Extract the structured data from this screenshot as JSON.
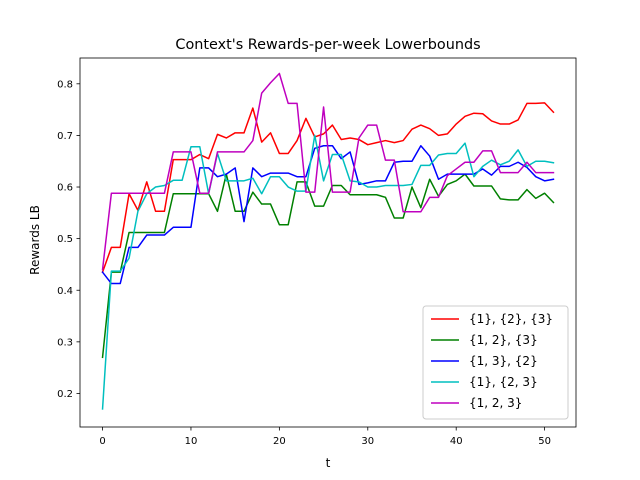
{
  "chart_data": {
    "type": "line",
    "title": "Context's Rewards-per-week Lowerbounds",
    "xlabel": "t",
    "ylabel": "Rewards LB",
    "xlim": [
      -2.55,
      53.55
    ],
    "ylim": [
      0.135,
      0.85
    ],
    "xticks": [
      0,
      10,
      20,
      30,
      40,
      50
    ],
    "yticks": [
      0.2,
      0.3,
      0.4,
      0.5,
      0.6,
      0.7,
      0.8
    ],
    "grid": false,
    "legend_position": "lower right",
    "x": [
      0,
      1,
      2,
      3,
      4,
      5,
      6,
      7,
      8,
      9,
      10,
      11,
      12,
      13,
      14,
      15,
      16,
      17,
      18,
      19,
      20,
      21,
      22,
      23,
      24,
      25,
      26,
      27,
      28,
      29,
      30,
      31,
      32,
      33,
      34,
      35,
      36,
      37,
      38,
      39,
      40,
      41,
      42,
      43,
      44,
      45,
      46,
      47,
      48,
      49,
      50,
      51
    ],
    "series": [
      {
        "name": "{1}, {2}, {3}",
        "color": "#ff0000",
        "values": [
          0.435,
          0.483,
          0.483,
          0.587,
          0.555,
          0.61,
          0.553,
          0.553,
          0.653,
          0.653,
          0.653,
          0.663,
          0.655,
          0.702,
          0.695,
          0.705,
          0.705,
          0.753,
          0.687,
          0.705,
          0.665,
          0.665,
          0.69,
          0.733,
          0.697,
          0.703,
          0.72,
          0.692,
          0.695,
          0.692,
          0.682,
          0.686,
          0.69,
          0.686,
          0.69,
          0.712,
          0.72,
          0.713,
          0.7,
          0.703,
          0.722,
          0.737,
          0.743,
          0.742,
          0.728,
          0.722,
          0.722,
          0.73,
          0.762,
          0.762,
          0.763,
          0.745
        ]
      },
      {
        "name": "{1, 2}, {3}",
        "color": "#008000",
        "values": [
          0.27,
          0.435,
          0.435,
          0.512,
          0.512,
          0.512,
          0.512,
          0.512,
          0.587,
          0.587,
          0.587,
          0.587,
          0.587,
          0.553,
          0.625,
          0.553,
          0.553,
          0.59,
          0.567,
          0.567,
          0.527,
          0.527,
          0.61,
          0.61,
          0.563,
          0.563,
          0.603,
          0.603,
          0.585,
          0.585,
          0.585,
          0.585,
          0.58,
          0.54,
          0.54,
          0.6,
          0.56,
          0.615,
          0.582,
          0.605,
          0.612,
          0.625,
          0.602,
          0.602,
          0.602,
          0.577,
          0.575,
          0.575,
          0.595,
          0.578,
          0.588,
          0.57
        ]
      },
      {
        "name": "{1, 3}, {2}",
        "color": "#0000ff",
        "values": [
          0.435,
          0.413,
          0.413,
          0.483,
          0.483,
          0.507,
          0.507,
          0.507,
          0.522,
          0.522,
          0.522,
          0.637,
          0.637,
          0.62,
          0.625,
          0.637,
          0.533,
          0.637,
          0.62,
          0.627,
          0.627,
          0.627,
          0.62,
          0.62,
          0.675,
          0.68,
          0.68,
          0.655,
          0.668,
          0.605,
          0.608,
          0.612,
          0.612,
          0.648,
          0.65,
          0.65,
          0.68,
          0.66,
          0.615,
          0.625,
          0.625,
          0.625,
          0.625,
          0.635,
          0.623,
          0.64,
          0.64,
          0.648,
          0.638,
          0.62,
          0.612,
          0.615
        ]
      },
      {
        "name": "{1}, {2, 3}",
        "color": "#00bfbf",
        "values": [
          0.17,
          0.437,
          0.437,
          0.462,
          0.553,
          0.587,
          0.6,
          0.603,
          0.613,
          0.613,
          0.678,
          0.678,
          0.587,
          0.665,
          0.612,
          0.612,
          0.612,
          0.617,
          0.587,
          0.62,
          0.62,
          0.6,
          0.592,
          0.592,
          0.7,
          0.612,
          0.663,
          0.663,
          0.612,
          0.61,
          0.6,
          0.6,
          0.603,
          0.603,
          0.603,
          0.605,
          0.642,
          0.642,
          0.662,
          0.665,
          0.665,
          0.685,
          0.62,
          0.64,
          0.652,
          0.643,
          0.65,
          0.672,
          0.64,
          0.65,
          0.65,
          0.647
        ]
      },
      {
        "name": "{1, 2, 3}",
        "color": "#bf00bf",
        "values": [
          0.44,
          0.588,
          0.588,
          0.588,
          0.588,
          0.588,
          0.588,
          0.588,
          0.668,
          0.668,
          0.668,
          0.588,
          0.588,
          0.668,
          0.668,
          0.668,
          0.668,
          0.69,
          0.782,
          0.802,
          0.82,
          0.762,
          0.762,
          0.59,
          0.59,
          0.755,
          0.59,
          0.59,
          0.59,
          0.695,
          0.72,
          0.72,
          0.652,
          0.652,
          0.552,
          0.552,
          0.552,
          0.58,
          0.58,
          0.622,
          0.635,
          0.648,
          0.648,
          0.67,
          0.67,
          0.628,
          0.628,
          0.628,
          0.648,
          0.628,
          0.628,
          0.628
        ]
      }
    ]
  }
}
